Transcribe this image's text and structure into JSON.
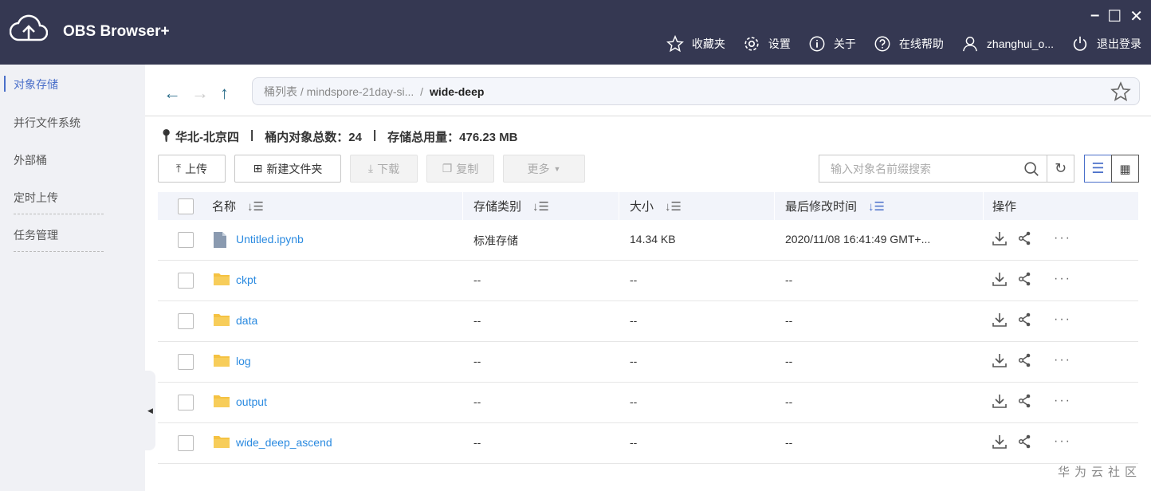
{
  "app": {
    "title": "OBS Browser+",
    "window_controls": [
      "–",
      "☐",
      "✕"
    ]
  },
  "header_nav": [
    {
      "icon": "star-icon",
      "label": "收藏夹"
    },
    {
      "icon": "gear-icon",
      "label": "设置"
    },
    {
      "icon": "info-icon",
      "label": "关于"
    },
    {
      "icon": "help-icon",
      "label": "在线帮助"
    },
    {
      "icon": "user-icon",
      "label": "zhanghui_o..."
    },
    {
      "icon": "power-icon",
      "label": "退出登录"
    }
  ],
  "sidebar": {
    "items": [
      {
        "label": "对象存储",
        "active": true
      },
      {
        "label": "并行文件系统"
      },
      {
        "label": "外部桶"
      },
      {
        "label": "定时上传"
      },
      {
        "label": "任务管理"
      }
    ]
  },
  "breadcrumb": {
    "root": "桶列表",
    "sep": "/",
    "bucket": "mindspore-21day-si...",
    "current": "wide-deep"
  },
  "info": {
    "region": "华北-北京四",
    "sep": "|",
    "object_count": "桶内对象总数：24",
    "storage": "存储总用量：476.23 MB"
  },
  "toolbar": {
    "upload": "上传",
    "new_folder": "新建文件夹",
    "download": "下载",
    "copy": "复制",
    "more": "更多"
  },
  "search": {
    "placeholder": "输入对象名前缀搜索"
  },
  "table": {
    "headers": {
      "name": "名称",
      "class": "存储类别",
      "size": "大小",
      "modified": "最后修改时间",
      "ops": "操作"
    },
    "rows": [
      {
        "type": "file",
        "name": "Untitled.ipynb",
        "class": "标准存储",
        "size": "14.34 KB",
        "modified": "2020/11/08 16:41:49 GMT+..."
      },
      {
        "type": "folder",
        "name": "ckpt",
        "class": "--",
        "size": "--",
        "modified": "--"
      },
      {
        "type": "folder",
        "name": "data",
        "class": "--",
        "size": "--",
        "modified": "--"
      },
      {
        "type": "folder",
        "name": "log",
        "class": "--",
        "size": "--",
        "modified": "--"
      },
      {
        "type": "folder",
        "name": "output",
        "class": "--",
        "size": "--",
        "modified": "--"
      },
      {
        "type": "folder",
        "name": "wide_deep_ascend",
        "class": "--",
        "size": "--",
        "modified": "--"
      }
    ],
    "more_ops": "···"
  },
  "watermark": "华为云社区",
  "colors": {
    "header": "#353852",
    "accent": "#4a6fc9",
    "link": "#2a8ae0",
    "folder": "#f5c242"
  }
}
